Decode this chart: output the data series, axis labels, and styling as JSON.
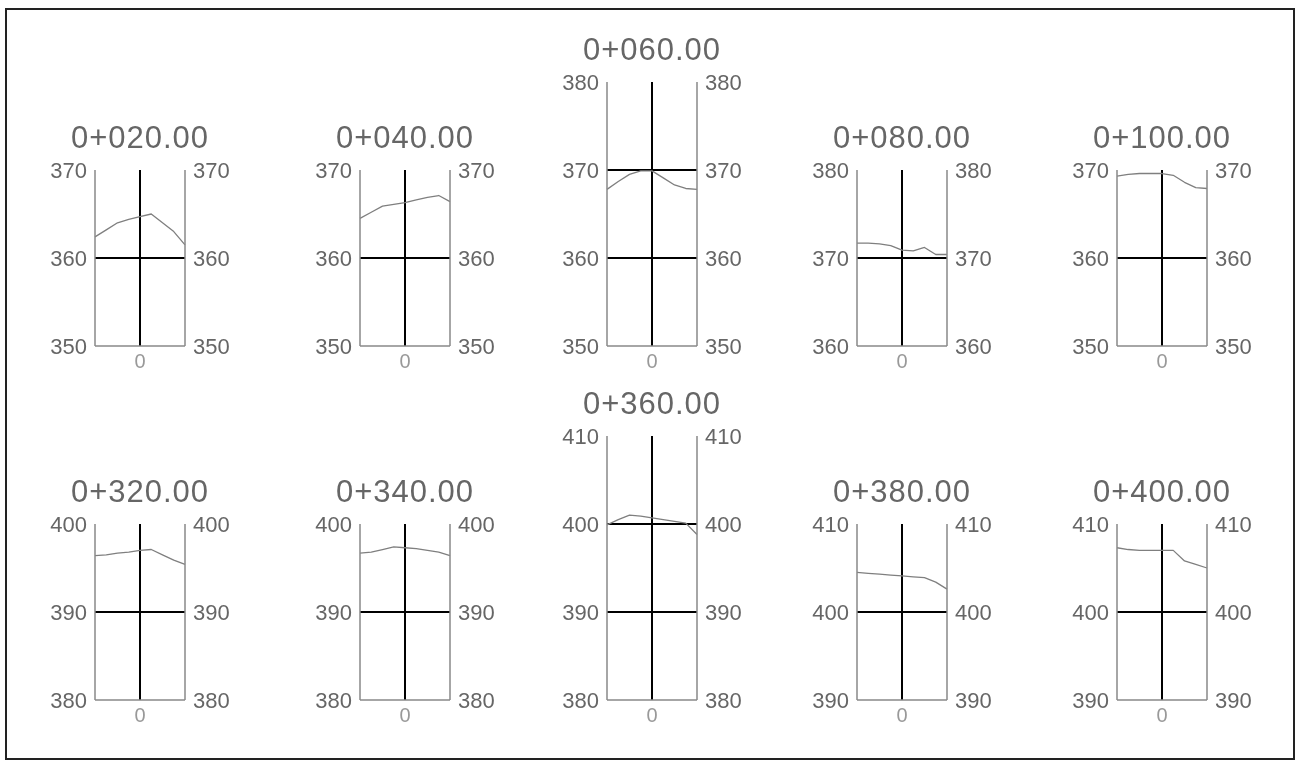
{
  "chart_data": [
    {
      "type": "line",
      "title": "0+020.00",
      "categories": [
        null,
        null,
        null,
        null,
        "0",
        null,
        null,
        null,
        null
      ],
      "series": [
        {
          "color": "#7f7f7f",
          "values": [
            362.4,
            363.2,
            364.0,
            364.4,
            364.7,
            365.0,
            364.0,
            363.0,
            361.5
          ]
        }
      ],
      "ylim": [
        350,
        370
      ],
      "yticks": [
        350,
        360,
        370
      ],
      "y2lim": [
        350,
        370
      ],
      "y2ticks": [
        350,
        360,
        370
      ],
      "ref_lines": [
        {
          "axis": "x",
          "value": "0",
          "color": "#000000"
        },
        {
          "axis": "y",
          "value": 360,
          "color": "#000000"
        }
      ]
    },
    {
      "type": "line",
      "title": "0+040.00",
      "categories": [
        null,
        null,
        null,
        null,
        "0",
        null,
        null,
        null,
        null
      ],
      "series": [
        {
          "color": "#7f7f7f",
          "values": [
            364.5,
            365.2,
            365.9,
            366.1,
            366.3,
            366.6,
            366.9,
            367.1,
            366.4
          ]
        }
      ],
      "ylim": [
        350,
        370
      ],
      "yticks": [
        350,
        360,
        370
      ],
      "y2lim": [
        350,
        370
      ],
      "y2ticks": [
        350,
        360,
        370
      ],
      "ref_lines": [
        {
          "axis": "x",
          "value": "0",
          "color": "#000000"
        },
        {
          "axis": "y",
          "value": 360,
          "color": "#000000"
        }
      ]
    },
    {
      "type": "line",
      "title": "0+060.00",
      "categories": [
        null,
        null,
        null,
        null,
        "0",
        null,
        null,
        null,
        null
      ],
      "series": [
        {
          "color": "#7f7f7f",
          "values": [
            367.8,
            368.7,
            369.5,
            369.9,
            369.9,
            369.1,
            368.3,
            367.9,
            367.8
          ]
        }
      ],
      "ylim": [
        350,
        380
      ],
      "yticks": [
        350,
        360,
        370,
        380
      ],
      "y2lim": [
        350,
        380
      ],
      "y2ticks": [
        350,
        360,
        370,
        380
      ],
      "ref_lines": [
        {
          "axis": "x",
          "value": "0",
          "color": "#000000"
        },
        {
          "axis": "y",
          "value": 360,
          "color": "#000000"
        },
        {
          "axis": "y",
          "value": 370,
          "color": "#000000"
        }
      ]
    },
    {
      "type": "line",
      "title": "0+080.00",
      "categories": [
        null,
        null,
        null,
        null,
        "0",
        null,
        null,
        null,
        null
      ],
      "series": [
        {
          "color": "#7f7f7f",
          "values": [
            371.7,
            371.7,
            371.6,
            371.4,
            370.9,
            370.8,
            371.2,
            370.4,
            370.4
          ]
        }
      ],
      "ylim": [
        360,
        380
      ],
      "yticks": [
        360,
        370,
        380
      ],
      "y2lim": [
        360,
        380
      ],
      "y2ticks": [
        360,
        370,
        380
      ],
      "ref_lines": [
        {
          "axis": "x",
          "value": "0",
          "color": "#000000"
        },
        {
          "axis": "y",
          "value": 370,
          "color": "#000000"
        }
      ]
    },
    {
      "type": "line",
      "title": "0+100.00",
      "categories": [
        null,
        null,
        null,
        null,
        "0",
        null,
        null,
        null,
        null
      ],
      "series": [
        {
          "color": "#7f7f7f",
          "values": [
            369.3,
            369.5,
            369.6,
            369.6,
            369.6,
            369.4,
            368.6,
            368.0,
            367.9
          ]
        }
      ],
      "ylim": [
        350,
        370
      ],
      "yticks": [
        350,
        360,
        370
      ],
      "y2lim": [
        350,
        370
      ],
      "y2ticks": [
        350,
        360,
        370
      ],
      "ref_lines": [
        {
          "axis": "x",
          "value": "0",
          "color": "#000000"
        },
        {
          "axis": "y",
          "value": 360,
          "color": "#000000"
        }
      ]
    },
    {
      "type": "line",
      "title": "0+320.00",
      "categories": [
        null,
        null,
        null,
        null,
        "0",
        null,
        null,
        null,
        null
      ],
      "series": [
        {
          "color": "#7f7f7f",
          "values": [
            396.4,
            396.5,
            396.7,
            396.8,
            397.0,
            397.1,
            396.5,
            395.9,
            395.4
          ]
        }
      ],
      "ylim": [
        380,
        400
      ],
      "yticks": [
        380,
        390,
        400
      ],
      "y2lim": [
        380,
        400
      ],
      "y2ticks": [
        380,
        390,
        400
      ],
      "ref_lines": [
        {
          "axis": "x",
          "value": "0",
          "color": "#000000"
        },
        {
          "axis": "y",
          "value": 390,
          "color": "#000000"
        }
      ]
    },
    {
      "type": "line",
      "title": "0+340.00",
      "categories": [
        null,
        null,
        null,
        null,
        "0",
        null,
        null,
        null,
        null
      ],
      "series": [
        {
          "color": "#7f7f7f",
          "values": [
            396.7,
            396.8,
            397.1,
            397.4,
            397.3,
            397.2,
            397.0,
            396.8,
            396.4
          ]
        }
      ],
      "ylim": [
        380,
        400
      ],
      "yticks": [
        380,
        390,
        400
      ],
      "y2lim": [
        380,
        400
      ],
      "y2ticks": [
        380,
        390,
        400
      ],
      "ref_lines": [
        {
          "axis": "x",
          "value": "0",
          "color": "#000000"
        },
        {
          "axis": "y",
          "value": 390,
          "color": "#000000"
        }
      ]
    },
    {
      "type": "line",
      "title": "0+360.00",
      "categories": [
        null,
        null,
        null,
        null,
        "0",
        null,
        null,
        null,
        null
      ],
      "series": [
        {
          "color": "#7f7f7f",
          "values": [
            399.9,
            400.5,
            401.0,
            400.9,
            400.7,
            400.5,
            400.3,
            400.1,
            398.8
          ]
        }
      ],
      "ylim": [
        380,
        410
      ],
      "yticks": [
        380,
        390,
        400,
        410
      ],
      "y2lim": [
        380,
        410
      ],
      "y2ticks": [
        380,
        390,
        400,
        410
      ],
      "ref_lines": [
        {
          "axis": "x",
          "value": "0",
          "color": "#000000"
        },
        {
          "axis": "y",
          "value": 390,
          "color": "#000000"
        },
        {
          "axis": "y",
          "value": 400,
          "color": "#000000"
        }
      ]
    },
    {
      "type": "line",
      "title": "0+380.00",
      "categories": [
        null,
        null,
        null,
        null,
        "0",
        null,
        null,
        null,
        null
      ],
      "series": [
        {
          "color": "#7f7f7f",
          "values": [
            404.5,
            404.4,
            404.3,
            404.2,
            404.1,
            404.0,
            403.9,
            403.4,
            402.6
          ]
        }
      ],
      "ylim": [
        390,
        410
      ],
      "yticks": [
        390,
        400,
        410
      ],
      "y2lim": [
        390,
        410
      ],
      "y2ticks": [
        390,
        400,
        410
      ],
      "ref_lines": [
        {
          "axis": "x",
          "value": "0",
          "color": "#000000"
        },
        {
          "axis": "y",
          "value": 400,
          "color": "#000000"
        }
      ]
    },
    {
      "type": "line",
      "title": "0+400.00",
      "categories": [
        null,
        null,
        null,
        null,
        "0",
        null,
        null,
        null,
        null
      ],
      "series": [
        {
          "color": "#7f7f7f",
          "values": [
            407.3,
            407.1,
            407.0,
            407.0,
            407.0,
            407.0,
            405.8,
            405.4,
            405.0
          ]
        }
      ],
      "ylim": [
        390,
        410
      ],
      "yticks": [
        390,
        400,
        410
      ],
      "y2lim": [
        390,
        410
      ],
      "y2ticks": [
        390,
        400,
        410
      ],
      "ref_lines": [
        {
          "axis": "x",
          "value": "0",
          "color": "#000000"
        },
        {
          "axis": "y",
          "value": 400,
          "color": "#000000"
        }
      ]
    }
  ]
}
